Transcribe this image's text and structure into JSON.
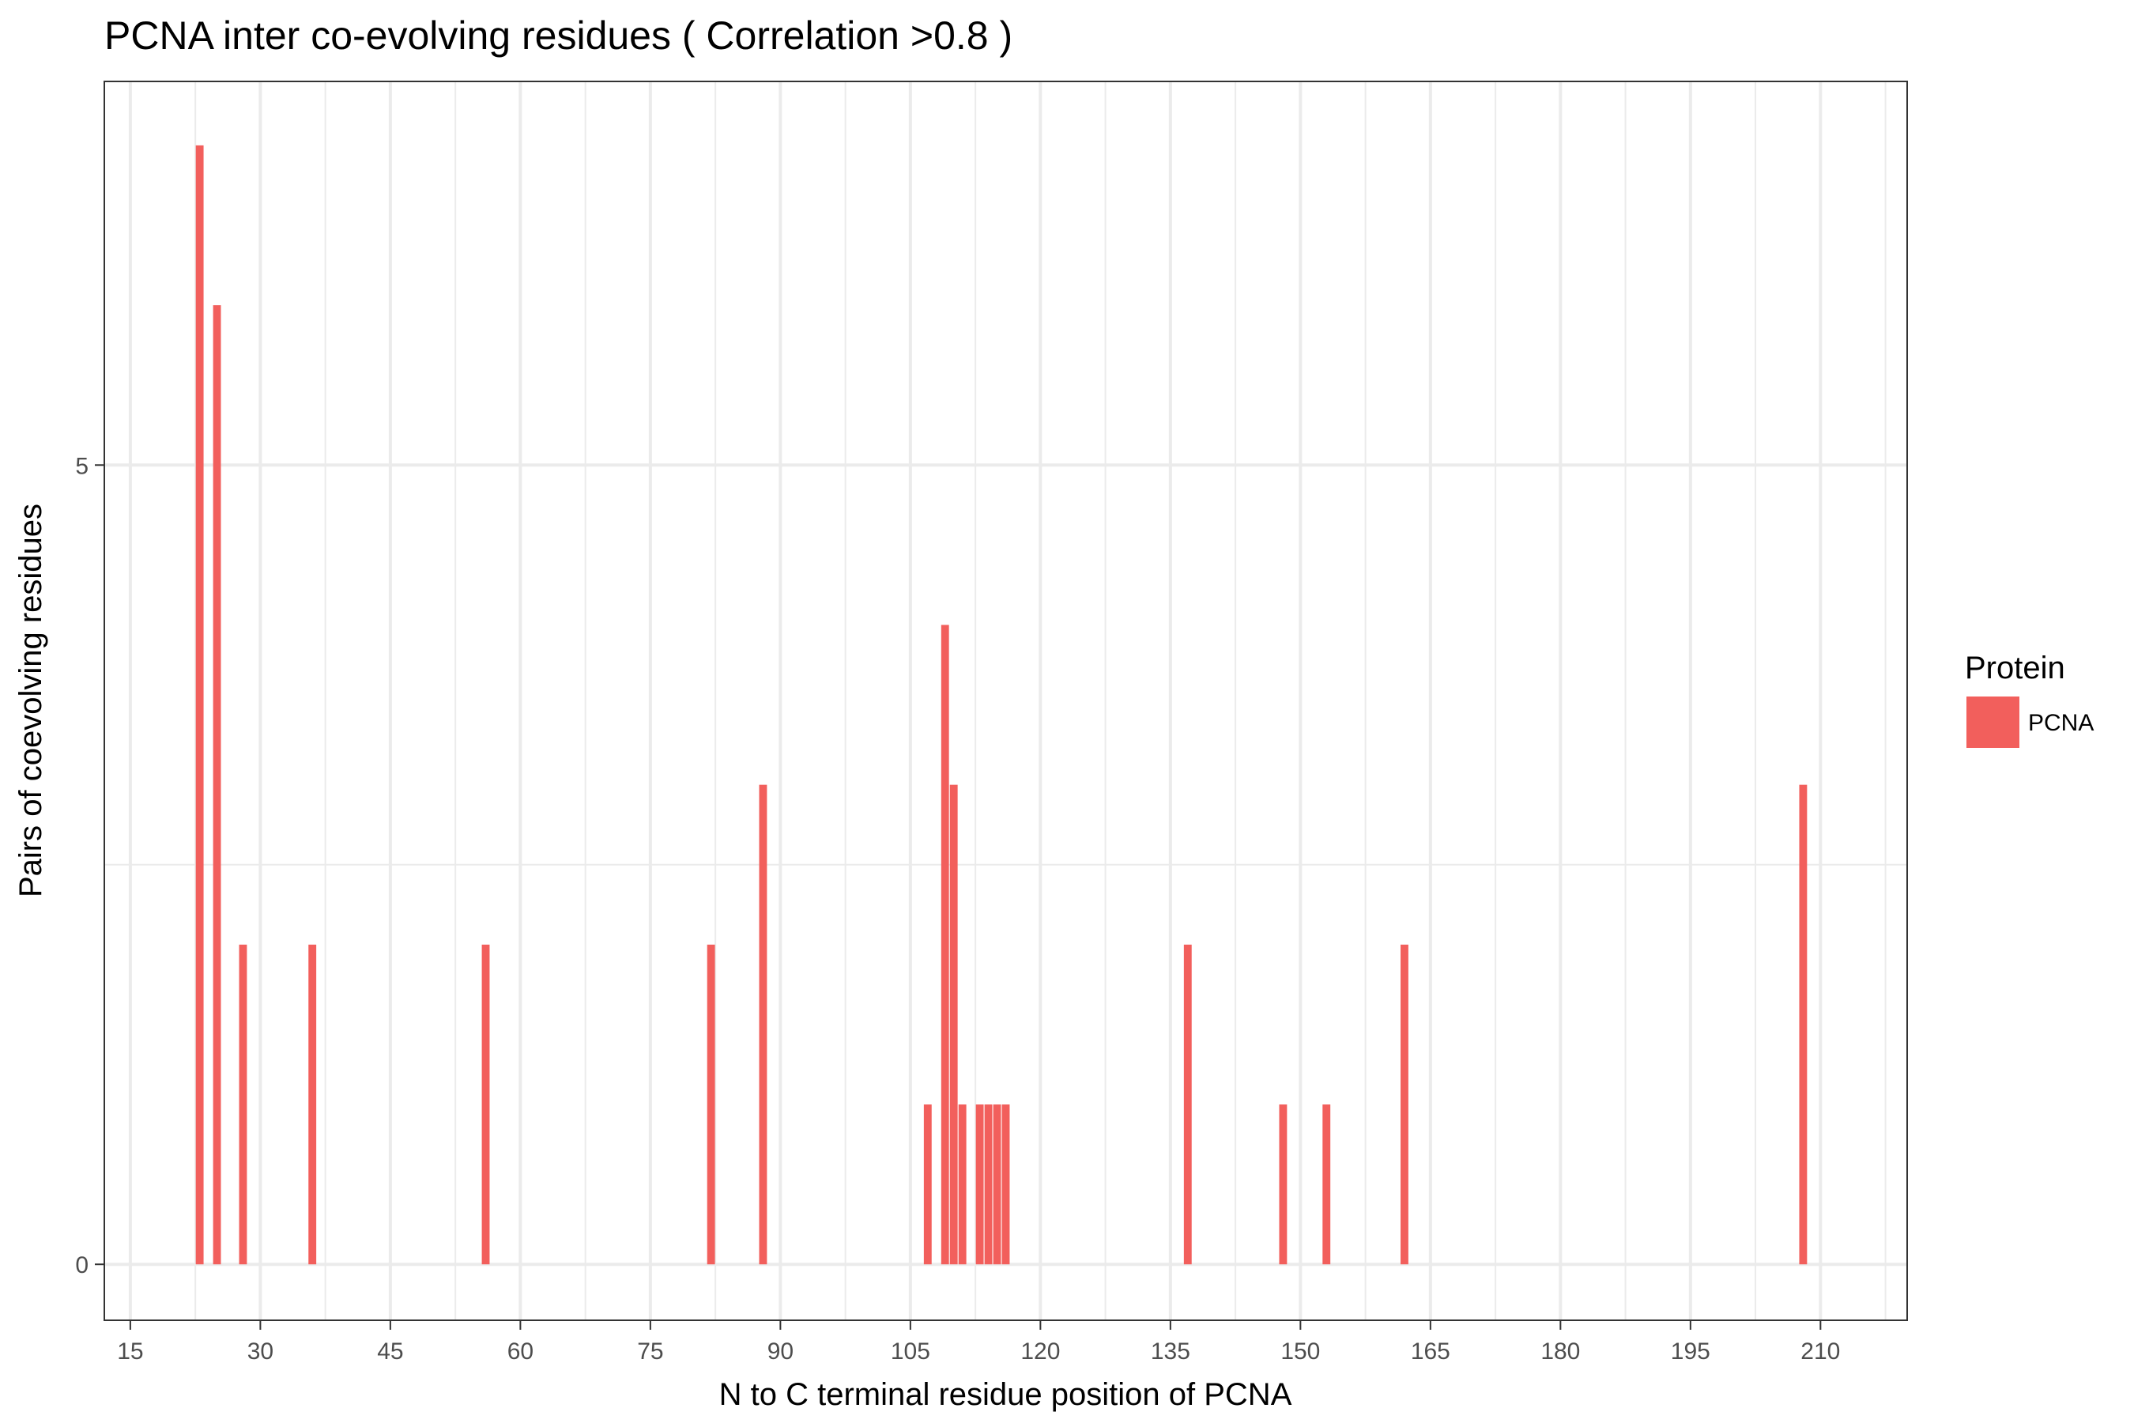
{
  "chart_data": {
    "type": "bar",
    "title": "PCNA inter co-evolving residues ( Correlation >0.8 )",
    "xlabel": "N to C terminal residue position of PCNA",
    "ylabel": "Pairs of coevolving residues",
    "xlim": [
      12,
      220
    ],
    "ylim": [
      -0.35,
      7.4
    ],
    "x_ticks": [
      15,
      30,
      45,
      60,
      75,
      90,
      105,
      120,
      135,
      150,
      165,
      180,
      195,
      210
    ],
    "y_ticks": [
      0,
      5
    ],
    "grid": true,
    "legend": {
      "title": "Protein",
      "position": "right"
    },
    "series": [
      {
        "name": "PCNA",
        "color": "#f25f5c",
        "x": [
          23,
          25,
          28,
          36,
          56,
          82,
          88,
          107,
          109,
          110,
          111,
          113,
          114,
          115,
          116,
          137,
          148,
          153,
          162,
          208
        ],
        "values": [
          7,
          6,
          2,
          2,
          2,
          2,
          3,
          1,
          4,
          3,
          1,
          1,
          1,
          1,
          1,
          2,
          1,
          1,
          2,
          3
        ]
      }
    ]
  }
}
